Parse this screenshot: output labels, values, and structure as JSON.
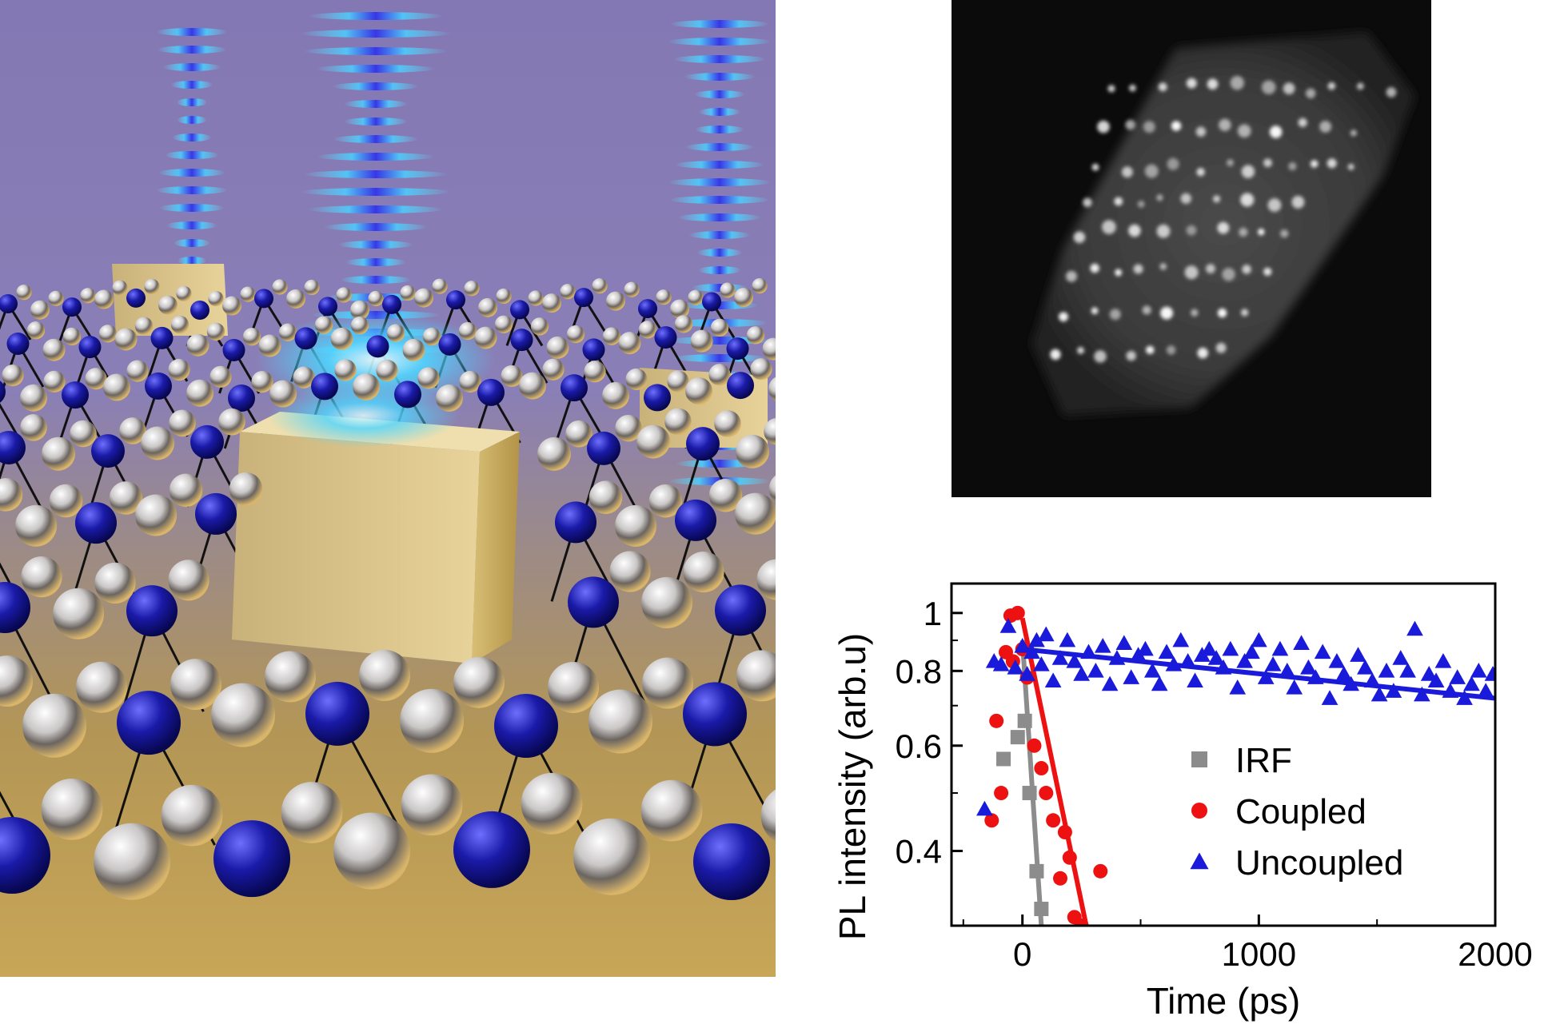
{
  "chart_data": {
    "type": "scatter",
    "title": "",
    "xlabel": "Time (ps)",
    "ylabel": "PL intensity (arb.u)",
    "xlim": [
      -300,
      2000
    ],
    "ylim": [
      0.3,
      1.12
    ],
    "yscale": "log",
    "x_ticks": [
      0,
      1000,
      2000
    ],
    "y_ticks": [
      0.4,
      0.6,
      0.8,
      1
    ],
    "legend_position": "lower-middle",
    "series": [
      {
        "name": "IRF",
        "marker": "square",
        "color": "#8c8c8c",
        "x": [
          -80,
          -20,
          10,
          30,
          60,
          80
        ],
        "y": [
          0.57,
          0.62,
          0.66,
          0.5,
          0.37,
          0.32
        ],
        "fit": {
          "x": [
            0,
            80
          ],
          "y": [
            0.9,
            0.3
          ]
        }
      },
      {
        "name": "Coupled",
        "marker": "circle",
        "color": "#ee1111",
        "x": [
          -130,
          -110,
          -90,
          -70,
          -50,
          -40,
          -20,
          0,
          20,
          50,
          80,
          100,
          130,
          160,
          180,
          200,
          220,
          250,
          280,
          330
        ],
        "y": [
          0.45,
          0.66,
          0.5,
          0.86,
          0.99,
          0.83,
          1.0,
          0.87,
          0.78,
          0.6,
          0.55,
          0.5,
          0.45,
          0.36,
          0.43,
          0.39,
          0.31,
          0.3,
          0.29,
          0.37
        ],
        "fit": {
          "x": [
            0,
            270
          ],
          "y": [
            0.98,
            0.3
          ]
        }
      },
      {
        "name": "Uncoupled",
        "marker": "triangle",
        "color": "#1a1adb",
        "x": [
          -160,
          -120,
          -90,
          -60,
          -30,
          0,
          20,
          40,
          60,
          80,
          100,
          130,
          160,
          190,
          220,
          250,
          280,
          310,
          340,
          370,
          400,
          430,
          460,
          490,
          520,
          550,
          580,
          610,
          640,
          670,
          700,
          730,
          760,
          790,
          820,
          850,
          880,
          910,
          940,
          970,
          1000,
          1030,
          1060,
          1090,
          1120,
          1150,
          1180,
          1210,
          1240,
          1270,
          1300,
          1330,
          1360,
          1390,
          1420,
          1450,
          1480,
          1510,
          1540,
          1570,
          1600,
          1630,
          1660,
          1690,
          1720,
          1750,
          1780,
          1810,
          1840,
          1870,
          1900,
          1930,
          1960,
          1990
        ],
        "y": [
          0.47,
          0.83,
          0.82,
          0.95,
          0.81,
          0.88,
          0.79,
          0.86,
          0.9,
          0.82,
          0.92,
          0.77,
          0.84,
          0.9,
          0.83,
          0.79,
          0.86,
          0.8,
          0.88,
          0.76,
          0.84,
          0.89,
          0.78,
          0.85,
          0.87,
          0.8,
          0.76,
          0.86,
          0.82,
          0.9,
          0.83,
          0.77,
          0.85,
          0.87,
          0.84,
          0.81,
          0.87,
          0.75,
          0.83,
          0.86,
          0.9,
          0.78,
          0.82,
          0.87,
          0.8,
          0.75,
          0.89,
          0.81,
          0.78,
          0.86,
          0.72,
          0.83,
          0.79,
          0.76,
          0.85,
          0.81,
          0.77,
          0.73,
          0.8,
          0.74,
          0.84,
          0.8,
          0.94,
          0.73,
          0.79,
          0.77,
          0.83,
          0.74,
          0.78,
          0.72,
          0.76,
          0.8,
          0.74,
          0.79
        ],
        "fit": {
          "x": [
            0,
            2000
          ],
          "y": [
            0.87,
            0.72
          ]
        }
      }
    ]
  }
}
